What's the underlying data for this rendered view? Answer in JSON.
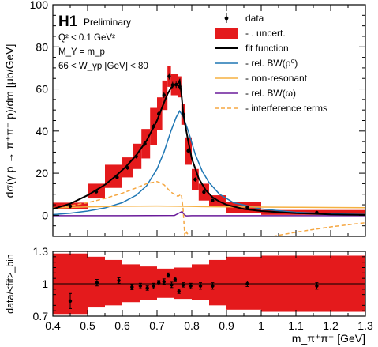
{
  "chart_data": [
    {
      "type": "line",
      "panel": "main",
      "ylabel": "dσ(γ p → π⁺π⁻ p)/dm [μb/GeV]",
      "xlim": [
        0.4,
        1.3
      ],
      "ylim": [
        -10,
        100
      ],
      "y_ticks": [
        0,
        20,
        40,
        60,
        80,
        100
      ],
      "legend_placement": "top-right",
      "info": {
        "experiment": "H1",
        "status": "Preliminary",
        "line1": "Q² < 0.1 GeV²",
        "line2": "M_Y = m_p",
        "line3": "66 < W_γp [GeV] < 80"
      },
      "legend": [
        {
          "label": "data",
          "style": "marker"
        },
        {
          "label": "- . uncert.",
          "style": "band"
        },
        {
          "label": "fit function",
          "style": "line-black"
        },
        {
          "label": "- rel. BW(ρ⁰)",
          "style": "line-blue"
        },
        {
          "label": "- non-resonant",
          "style": "line-orange"
        },
        {
          "label": "- rel. BW(ω)",
          "style": "line-purple"
        },
        {
          "label": "- interference terms",
          "style": "dash-orange"
        }
      ],
      "data_points": {
        "x": [
          0.45,
          0.525,
          0.585,
          0.615,
          0.64,
          0.665,
          0.69,
          0.705,
          0.72,
          0.735,
          0.745,
          0.755,
          0.765,
          0.775,
          0.79,
          0.81,
          0.835,
          0.86,
          0.96,
          1.16
        ],
        "y": [
          4.3,
          11.2,
          18.0,
          22.6,
          28.0,
          34.0,
          42.2,
          48.2,
          57.1,
          66.0,
          61.9,
          62.0,
          61.2,
          48.0,
          30.6,
          17.0,
          11.0,
          7.0,
          3.8,
          1.3
        ],
        "err": [
          1.0,
          0.8,
          0.9,
          1.0,
          1.0,
          1.1,
          1.2,
          1.3,
          1.4,
          1.5,
          1.5,
          1.5,
          1.5,
          1.4,
          1.2,
          1.0,
          0.9,
          0.8,
          0.5,
          0.4
        ]
      },
      "uncertainty_bins": [
        {
          "x": [
            0.4,
            0.5
          ],
          "y": [
            3.0,
            6.0
          ]
        },
        {
          "x": [
            0.5,
            0.55
          ],
          "y": [
            8.0,
            15.0
          ]
        },
        {
          "x": [
            0.55,
            0.6
          ],
          "y": [
            13.0,
            24.0
          ]
        },
        {
          "x": [
            0.6,
            0.63
          ],
          "y": [
            18.0,
            27.5
          ]
        },
        {
          "x": [
            0.63,
            0.655
          ],
          "y": [
            22.0,
            34.0
          ]
        },
        {
          "x": [
            0.655,
            0.68
          ],
          "y": [
            27.0,
            41.0
          ]
        },
        {
          "x": [
            0.68,
            0.7
          ],
          "y": [
            33.5,
            51.0
          ]
        },
        {
          "x": [
            0.7,
            0.715
          ],
          "y": [
            40.5,
            56.0
          ]
        },
        {
          "x": [
            0.715,
            0.73
          ],
          "y": [
            50.0,
            64.0
          ]
        },
        {
          "x": [
            0.73,
            0.74
          ],
          "y": [
            61.0,
            71.0
          ]
        },
        {
          "x": [
            0.74,
            0.75
          ],
          "y": [
            57.0,
            67.0
          ]
        },
        {
          "x": [
            0.75,
            0.76
          ],
          "y": [
            57.0,
            67.0
          ]
        },
        {
          "x": [
            0.76,
            0.77
          ],
          "y": [
            56.0,
            66.0
          ]
        },
        {
          "x": [
            0.77,
            0.78
          ],
          "y": [
            43.0,
            53.0
          ]
        },
        {
          "x": [
            0.78,
            0.8
          ],
          "y": [
            24.0,
            37.0
          ]
        },
        {
          "x": [
            0.8,
            0.82
          ],
          "y": [
            12.0,
            22.0
          ]
        },
        {
          "x": [
            0.82,
            0.85
          ],
          "y": [
            7.0,
            15.0
          ]
        },
        {
          "x": [
            0.85,
            0.9
          ],
          "y": [
            4.5,
            9.5
          ]
        },
        {
          "x": [
            0.9,
            1.0
          ],
          "y": [
            1.0,
            6.5
          ]
        },
        {
          "x": [
            1.0,
            1.3
          ],
          "y": [
            0.2,
            2.5
          ]
        }
      ],
      "series": [
        {
          "name": "fit function",
          "color": "#000000",
          "x": [
            0.4,
            0.45,
            0.5,
            0.55,
            0.58,
            0.61,
            0.64,
            0.67,
            0.7,
            0.72,
            0.73,
            0.74,
            0.75,
            0.76,
            0.765,
            0.77,
            0.775,
            0.78,
            0.79,
            0.8,
            0.82,
            0.84,
            0.86,
            0.88,
            0.9,
            0.95,
            1.0,
            1.1,
            1.2,
            1.3
          ],
          "y": [
            3.0,
            5.5,
            9.5,
            14.5,
            18.5,
            23.0,
            28.5,
            35.5,
            45.0,
            53.5,
            57.5,
            60.5,
            62.0,
            62.5,
            64.0,
            58.0,
            49.0,
            44.0,
            35.0,
            27.0,
            17.5,
            12.0,
            8.5,
            6.5,
            5.0,
            3.0,
            2.0,
            1.0,
            0.4,
            0.2
          ]
        },
        {
          "name": "- rel. BW(ρ⁰)",
          "color": "#1f77b4",
          "x": [
            0.4,
            0.45,
            0.5,
            0.55,
            0.6,
            0.64,
            0.67,
            0.7,
            0.72,
            0.74,
            0.755,
            0.765,
            0.775,
            0.79,
            0.81,
            0.83,
            0.85,
            0.88,
            0.92,
            1.0,
            1.1,
            1.2,
            1.3
          ],
          "y": [
            0.3,
            1.0,
            2.0,
            3.5,
            6.0,
            9.5,
            14.0,
            22.0,
            30.0,
            40.0,
            46.5,
            49.5,
            47.0,
            40.0,
            29.0,
            21.0,
            15.5,
            10.0,
            6.0,
            3.0,
            1.4,
            0.7,
            0.4
          ]
        },
        {
          "name": "- non-resonant",
          "color": "#f5b041",
          "x": [
            0.4,
            0.5,
            0.6,
            0.7,
            0.76,
            0.8,
            0.9,
            1.0,
            1.1,
            1.2,
            1.3
          ],
          "y": [
            3.5,
            4.0,
            4.3,
            4.4,
            4.3,
            4.2,
            4.0,
            3.9,
            3.8,
            3.7,
            3.6
          ]
        },
        {
          "name": "- rel. BW(ω)",
          "color": "#6a1b9a",
          "x": [
            0.4,
            0.6,
            0.75,
            0.772,
            0.778,
            0.784,
            0.8,
            1.0,
            1.3
          ],
          "y": [
            -0.2,
            -0.2,
            -0.1,
            1.8,
            0.3,
            -0.3,
            -0.2,
            -0.2,
            -0.2
          ]
        },
        {
          "name": "- interference terms",
          "color": "#f5a742",
          "dashed": true,
          "x": [
            0.4,
            0.45,
            0.5,
            0.55,
            0.6,
            0.64,
            0.67,
            0.7,
            0.72,
            0.74,
            0.76,
            0.77,
            0.775,
            0.78,
            0.785,
            0.79,
            0.8,
            0.82,
            0.85,
            0.9,
            1.0,
            1.1,
            1.2,
            1.3
          ],
          "y": [
            3.0,
            4.5,
            6.0,
            8.0,
            10.5,
            13.0,
            15.0,
            16.0,
            14.5,
            11.0,
            9.0,
            10.0,
            3.0,
            -10.0,
            -8.0,
            -9.5,
            -11.5,
            -14.0,
            -15.0,
            -14.0,
            -11.0,
            -8.0,
            -5.5,
            -3.5
          ]
        }
      ]
    },
    {
      "type": "scatter",
      "panel": "ratio",
      "ylabel": "data/<fit>_bin",
      "xlabel": "m_π⁺π⁻ [GeV]",
      "xlim": [
        0.4,
        1.3
      ],
      "ylim": [
        0.7,
        1.3
      ],
      "x_ticks": [
        "0.4",
        "0.5",
        "0.6",
        "0.7",
        "0.8",
        "0.9",
        "1",
        "1.1",
        "1.2",
        "1.3"
      ],
      "y_ticks": [
        "0.7",
        "1",
        "1.3"
      ],
      "reference_line": 1.0,
      "band": [
        {
          "x": [
            0.4,
            0.5
          ],
          "y": [
            0.72,
            1.28
          ]
        },
        {
          "x": [
            0.5,
            0.55
          ],
          "y": [
            0.78,
            1.25
          ]
        },
        {
          "x": [
            0.55,
            0.6
          ],
          "y": [
            0.8,
            1.22
          ]
        },
        {
          "x": [
            0.6,
            0.65
          ],
          "y": [
            0.83,
            1.18
          ]
        },
        {
          "x": [
            0.65,
            0.7
          ],
          "y": [
            0.85,
            1.16
          ]
        },
        {
          "x": [
            0.7,
            0.75
          ],
          "y": [
            0.87,
            1.14
          ]
        },
        {
          "x": [
            0.75,
            0.8
          ],
          "y": [
            0.86,
            1.15
          ]
        },
        {
          "x": [
            0.8,
            0.85
          ],
          "y": [
            0.85,
            1.18
          ]
        },
        {
          "x": [
            0.85,
            0.9
          ],
          "y": [
            0.8,
            1.22
          ]
        },
        {
          "x": [
            0.9,
            1.0
          ],
          "y": [
            0.76,
            1.25
          ]
        },
        {
          "x": [
            1.0,
            1.3
          ],
          "y": [
            0.74,
            1.26
          ]
        }
      ],
      "points": {
        "x": [
          0.45,
          0.527,
          0.59,
          0.628,
          0.652,
          0.672,
          0.69,
          0.705,
          0.72,
          0.732,
          0.742,
          0.752,
          0.763,
          0.775,
          0.797,
          0.825,
          0.86,
          0.96,
          1.16
        ],
        "y": [
          0.84,
          1.01,
          1.03,
          0.97,
          0.98,
          0.96,
          0.98,
          1.01,
          1.02,
          1.08,
          0.99,
          1.04,
          0.93,
          0.99,
          0.98,
          0.98,
          0.98,
          1.0,
          0.98
        ],
        "err": [
          0.07,
          0.03,
          0.025,
          0.025,
          0.025,
          0.02,
          0.025,
          0.02,
          0.025,
          0.02,
          0.025,
          0.02,
          0.02,
          0.02,
          0.025,
          0.03,
          0.03,
          0.025,
          0.03
        ]
      }
    }
  ]
}
